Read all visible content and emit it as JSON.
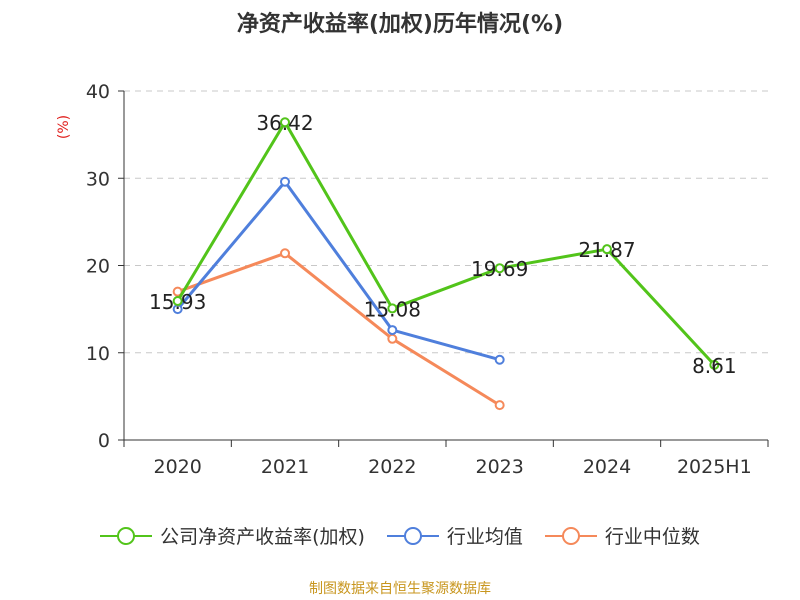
{
  "chart_data": {
    "type": "line",
    "title": "净资产收益率(加权)历年情况(%)",
    "ylabel": "(%)",
    "xlabel": "",
    "categories": [
      "2020",
      "2021",
      "2022",
      "2023",
      "2024",
      "2025H1"
    ],
    "ylim": [
      0,
      40
    ],
    "yticks": [
      0,
      10,
      20,
      30,
      40
    ],
    "grid": true,
    "legend_position": "bottom",
    "series": [
      {
        "name": "公司净资产收益率(加权)",
        "color": "#52c41a",
        "values": [
          15.93,
          36.42,
          15.08,
          19.69,
          21.87,
          8.61
        ],
        "labels": true
      },
      {
        "name": "行业均值",
        "color": "#4f7fdc",
        "values": [
          15.0,
          29.6,
          12.6,
          9.2,
          null,
          null
        ],
        "labels": false
      },
      {
        "name": "行业中位数",
        "color": "#f5895a",
        "values": [
          17.0,
          21.4,
          11.6,
          4.0,
          null,
          null
        ],
        "labels": false
      }
    ]
  },
  "source": "制图数据来自恒生聚源数据库"
}
